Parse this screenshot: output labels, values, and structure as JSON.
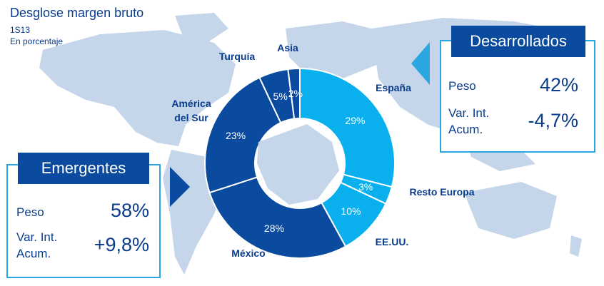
{
  "header": {
    "title": "Desglose margen bruto",
    "period": "1S13",
    "unit_note": "En porcentaje"
  },
  "emergentes": {
    "tag": "Emergentes",
    "peso_label": "Peso",
    "peso_value": "58%",
    "var_label_1": "Var. Int.",
    "var_label_2": "Acum.",
    "var_value": "+9,8%"
  },
  "desarrollados": {
    "tag": "Desarrollados",
    "peso_label": "Peso",
    "peso_value": "42%",
    "var_label_1": "Var. Int.",
    "var_label_2": "Acum.",
    "var_value": "-4,7%"
  },
  "colors": {
    "developed": "#0ab0ee",
    "emerging": "#0a4a9f",
    "map": "#c5d6ea",
    "text_dark": "#0a3c8c"
  },
  "chart_data": {
    "type": "pie",
    "title": "Desglose margen bruto",
    "slices": [
      {
        "name": "España",
        "value": 29,
        "label": "29%",
        "group": "developed"
      },
      {
        "name": "Resto Europa",
        "value": 3,
        "label": "3%",
        "group": "developed"
      },
      {
        "name": "EE.UU.",
        "value": 10,
        "label": "10%",
        "group": "developed"
      },
      {
        "name": "México",
        "value": 28,
        "label": "28%",
        "group": "emerging"
      },
      {
        "name": "América del Sur",
        "value": 23,
        "label": "23%",
        "group": "emerging"
      },
      {
        "name": "Turquía",
        "value": 5,
        "label": "5%",
        "group": "emerging"
      },
      {
        "name": "Asia",
        "value": 2,
        "label": "2%",
        "group": "emerging"
      }
    ]
  }
}
